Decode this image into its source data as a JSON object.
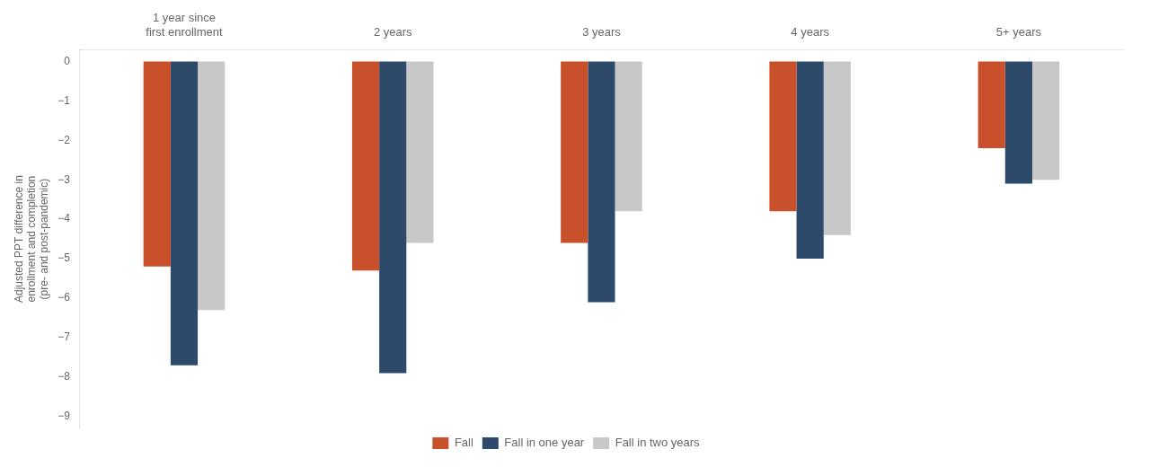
{
  "chart_data": {
    "type": "bar",
    "categories": [
      "1 year since\nfirst enrollment",
      "2 years",
      "3 years",
      "4 years",
      "5+ years"
    ],
    "series": [
      {
        "name": "Fall",
        "color": "#C8502A",
        "values": [
          -5.2,
          -5.3,
          -4.6,
          -3.8,
          -2.2
        ]
      },
      {
        "name": "Fall in one year",
        "color": "#2D4A6B",
        "values": [
          -7.7,
          -7.9,
          -6.1,
          -5.0,
          -3.1
        ]
      },
      {
        "name": "Fall in two years",
        "color": "#C8C8C8",
        "values": [
          -6.3,
          -4.6,
          -3.8,
          -4.4,
          -3.0
        ]
      }
    ],
    "ylabel": "Adjusted PPT difference in\nenrollment and completion\n(pre- and post-pandemic)",
    "ylim": [
      -9.3,
      0.3
    ],
    "yticks": [
      0,
      {
        "value": -1,
        "label": "−1"
      },
      {
        "value": -2,
        "label": "−2"
      },
      {
        "value": -3,
        "label": "−3"
      },
      {
        "value": -4,
        "label": "−4"
      },
      {
        "value": -5,
        "label": "−5"
      },
      {
        "value": -6,
        "label": "−6"
      },
      {
        "value": -7,
        "label": "−7"
      },
      {
        "value": -8,
        "label": "−8"
      },
      {
        "value": -9,
        "label": "−9"
      }
    ],
    "grid": false,
    "legend": "bottom"
  }
}
